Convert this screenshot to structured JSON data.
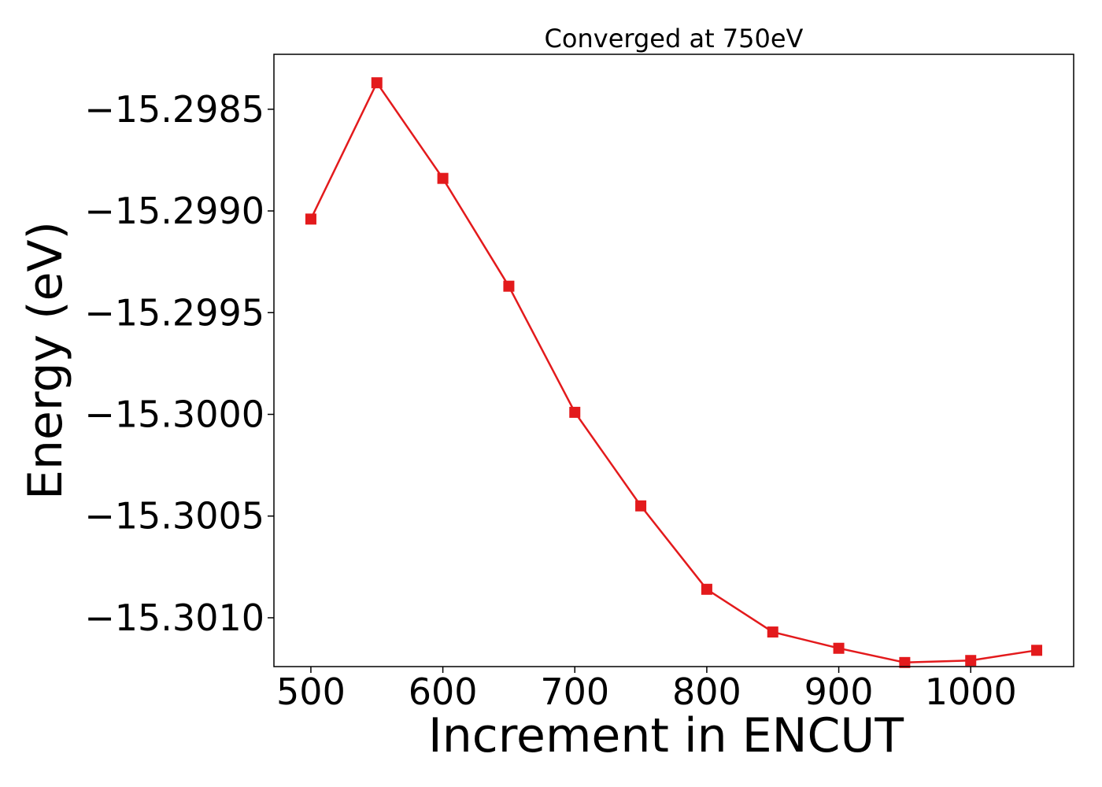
{
  "chart_data": {
    "type": "line",
    "title": "Converged at 750eV",
    "xlabel": "Increment in ENCUT",
    "ylabel": "Energy (eV)",
    "xlim": [
      472,
      1078
    ],
    "ylim": [
      -15.30124,
      -15.29823
    ],
    "x_ticks": [
      500,
      600,
      700,
      800,
      900,
      1000
    ],
    "x_tick_labels": [
      "500",
      "600",
      "700",
      "800",
      "900",
      "1000"
    ],
    "y_ticks": [
      -15.2985,
      -15.299,
      -15.2995,
      -15.3,
      -15.3005,
      -15.301
    ],
    "y_tick_labels": [
      "−15.2985",
      "−15.2990",
      "−15.2995",
      "−15.3000",
      "−15.3005",
      "−15.3010"
    ],
    "grid": false,
    "series": [
      {
        "color": "#e31a1c",
        "marker": "square",
        "x": [
          500,
          550,
          600,
          650,
          700,
          750,
          800,
          850,
          900,
          950,
          1000,
          1050
        ],
        "y": [
          -15.29904,
          -15.29837,
          -15.29884,
          -15.29937,
          -15.29999,
          -15.30045,
          -15.30086,
          -15.30107,
          -15.30115,
          -15.30122,
          -15.30121,
          -15.30116
        ]
      }
    ]
  }
}
